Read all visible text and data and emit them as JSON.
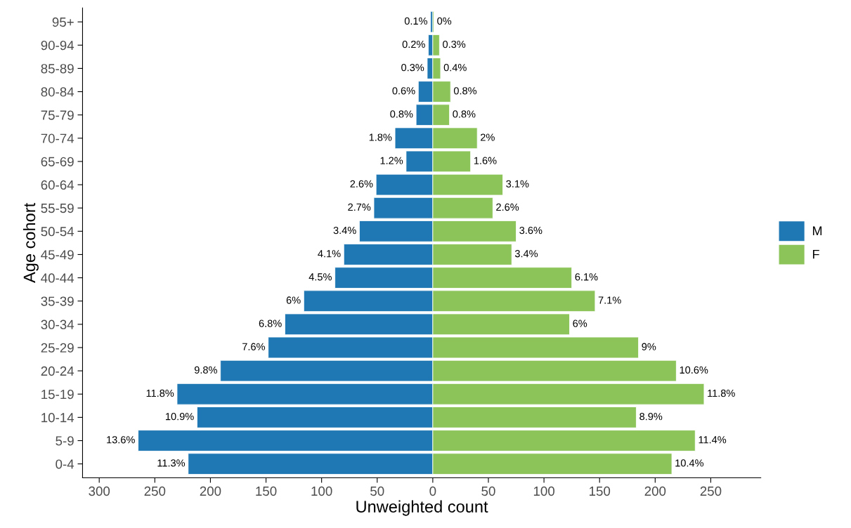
{
  "chart_data": {
    "type": "bar",
    "orientation": "horizontal",
    "stacked": true,
    "xlabel": "Unweighted count",
    "ylabel": "Age cohort",
    "categories": [
      "95+",
      "90-94",
      "85-89",
      "80-84",
      "75-79",
      "70-74",
      "65-69",
      "60-64",
      "55-59",
      "50-54",
      "45-49",
      "40-44",
      "35-39",
      "30-34",
      "25-29",
      "20-24",
      "15-19",
      "10-14",
      "5-9",
      "0-4"
    ],
    "series": [
      {
        "name": "M",
        "color": "#1f78b4",
        "values": [
          -2,
          -4,
          -5,
          -13,
          -15,
          -34,
          -24,
          -51,
          -53,
          -66,
          -80,
          -88,
          -116,
          -133,
          -148,
          -191,
          -230,
          -212,
          -265,
          -220
        ]
      },
      {
        "name": "F",
        "color": "#8cc45a",
        "values": [
          1,
          6,
          7,
          16,
          15,
          40,
          34,
          63,
          54,
          75,
          71,
          125,
          146,
          123,
          185,
          219,
          244,
          183,
          236,
          215
        ]
      }
    ],
    "annotations": [
      {
        "text": "0.1%",
        "x": -2,
        "y": "95+"
      },
      {
        "text": "0.2%",
        "x": -4,
        "y": "90-94"
      },
      {
        "text": "0.3%",
        "x": -5,
        "y": "85-89"
      },
      {
        "text": "0.6%",
        "x": -13,
        "y": "80-84"
      },
      {
        "text": "0.8%",
        "x": -15,
        "y": "75-79"
      },
      {
        "text": "1.8%",
        "x": -34,
        "y": "70-74"
      },
      {
        "text": "1.2%",
        "x": -24,
        "y": "65-69"
      },
      {
        "text": "2.6%",
        "x": -51,
        "y": "60-64"
      },
      {
        "text": "2.7%",
        "x": -53,
        "y": "55-59"
      },
      {
        "text": "3.4%",
        "x": -66,
        "y": "50-54"
      },
      {
        "text": "4.1%",
        "x": -80,
        "y": "45-49"
      },
      {
        "text": "4.5%",
        "x": -88,
        "y": "40-44"
      },
      {
        "text": "6%",
        "x": -116,
        "y": "35-39"
      },
      {
        "text": "6.8%",
        "x": -133,
        "y": "30-34"
      },
      {
        "text": "7.6%",
        "x": -148,
        "y": "25-29"
      },
      {
        "text": "9.8%",
        "x": -191,
        "y": "20-24"
      },
      {
        "text": "11.8%",
        "x": -230,
        "y": "15-19"
      },
      {
        "text": "10.9%",
        "x": -212,
        "y": "10-14"
      },
      {
        "text": "13.6%",
        "x": -265,
        "y": "5-9"
      },
      {
        "text": "11.3%",
        "x": -220,
        "y": "0-4"
      },
      {
        "text": "0%",
        "x": 1,
        "y": "95+"
      },
      {
        "text": "0.3%",
        "x": 6,
        "y": "90-94"
      },
      {
        "text": "0.4%",
        "x": 7,
        "y": "85-89"
      },
      {
        "text": "0.8%",
        "x": 16,
        "y": "80-84"
      },
      {
        "text": "0.8%",
        "x": 15,
        "y": "75-79"
      },
      {
        "text": "2%",
        "x": 40,
        "y": "70-74"
      },
      {
        "text": "1.6%",
        "x": 34,
        "y": "65-69"
      },
      {
        "text": "3.1%",
        "x": 63,
        "y": "60-64"
      },
      {
        "text": "2.6%",
        "x": 54,
        "y": "55-59"
      },
      {
        "text": "3.6%",
        "x": 75,
        "y": "50-54"
      },
      {
        "text": "3.4%",
        "x": 71,
        "y": "45-49"
      },
      {
        "text": "6.1%",
        "x": 125,
        "y": "40-44"
      },
      {
        "text": "7.1%",
        "x": 146,
        "y": "35-39"
      },
      {
        "text": "6%",
        "x": 123,
        "y": "30-34"
      },
      {
        "text": "9%",
        "x": 185,
        "y": "25-29"
      },
      {
        "text": "10.6%",
        "x": 219,
        "y": "20-24"
      },
      {
        "text": "11.8%",
        "x": 244,
        "y": "15-19"
      },
      {
        "text": "8.9%",
        "x": 183,
        "y": "10-14"
      },
      {
        "text": "11.4%",
        "x": 236,
        "y": "5-9"
      },
      {
        "text": "10.4%",
        "x": 215,
        "y": "0-4"
      }
    ],
    "xlim": [
      -315,
      295
    ],
    "xticks": [
      {
        "value": -300,
        "label": "300"
      },
      {
        "value": -250,
        "label": "250"
      },
      {
        "value": -200,
        "label": "200"
      },
      {
        "value": -150,
        "label": "150"
      },
      {
        "value": -100,
        "label": "100"
      },
      {
        "value": -50,
        "label": "50"
      },
      0,
      50,
      100,
      150,
      200,
      250
    ],
    "legend": "right"
  }
}
